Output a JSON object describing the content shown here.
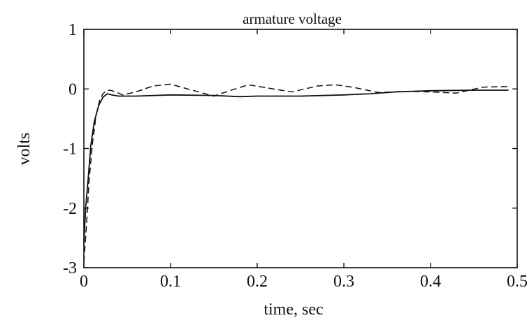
{
  "chart_data": {
    "type": "line",
    "title": "armature voltage",
    "xlabel": "time, sec",
    "ylabel": "volts",
    "xlim": [
      0,
      0.5
    ],
    "ylim": [
      -3,
      1
    ],
    "xticks": [
      0,
      0.1,
      0.2,
      0.3,
      0.4,
      0.5
    ],
    "xtick_labels": [
      "0",
      "0.1",
      "0.2",
      "0.3",
      "0.4",
      "0.5"
    ],
    "yticks": [
      -3,
      -2,
      -1,
      0,
      1
    ],
    "ytick_labels": [
      "-3",
      "-2",
      "-1",
      "0",
      "1"
    ],
    "grid": false,
    "series": [
      {
        "style": "solid",
        "x": [
          0,
          0.002,
          0.005,
          0.008,
          0.012,
          0.017,
          0.022,
          0.027,
          0.032,
          0.04,
          0.06,
          0.1,
          0.15,
          0.18,
          0.2,
          0.25,
          0.3,
          0.33,
          0.36,
          0.4,
          0.45,
          0.49
        ],
        "y": [
          -2.6,
          -2.0,
          -1.5,
          -0.95,
          -0.55,
          -0.28,
          -0.14,
          -0.08,
          -0.1,
          -0.12,
          -0.12,
          -0.1,
          -0.11,
          -0.13,
          -0.12,
          -0.12,
          -0.1,
          -0.08,
          -0.05,
          -0.03,
          -0.02,
          -0.02
        ]
      },
      {
        "style": "dashed",
        "x": [
          0,
          0.003,
          0.006,
          0.01,
          0.014,
          0.018,
          0.022,
          0.026,
          0.03,
          0.035,
          0.045,
          0.06,
          0.08,
          0.1,
          0.12,
          0.15,
          0.17,
          0.19,
          0.21,
          0.24,
          0.27,
          0.29,
          0.31,
          0.34,
          0.37,
          0.4,
          0.43,
          0.46,
          0.49
        ],
        "y": [
          -2.9,
          -2.3,
          -1.55,
          -0.9,
          -0.45,
          -0.2,
          -0.08,
          -0.03,
          -0.02,
          -0.04,
          -0.1,
          -0.05,
          0.05,
          0.08,
          0.0,
          -0.12,
          -0.02,
          0.07,
          0.02,
          -0.05,
          0.05,
          0.07,
          0.03,
          -0.06,
          -0.04,
          -0.05,
          -0.07,
          0.03,
          0.04
        ]
      }
    ]
  }
}
